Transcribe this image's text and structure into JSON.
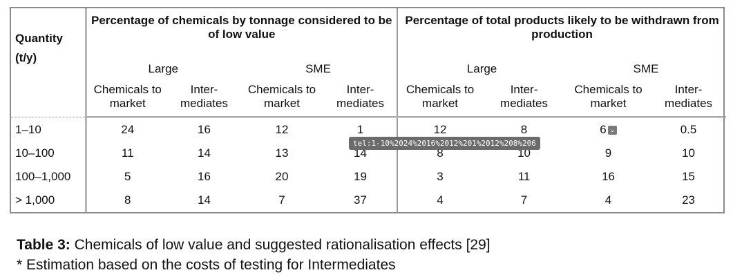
{
  "table": {
    "quantity_header_line1": "Quantity",
    "quantity_header_line2": "(t/y)",
    "group1_title": "Percentage of chemicals by tonnage considered to be of low value",
    "group2_title": "Percentage of total products likely to be withdrawn from production",
    "size_labels": [
      "Large",
      "SME",
      "Large",
      "SME"
    ],
    "sub_headers": [
      [
        "Chemicals to",
        "market"
      ],
      [
        "Inter-",
        "mediates"
      ],
      [
        "Chemicals to",
        "market"
      ],
      [
        "Inter-",
        "mediates"
      ],
      [
        "Chemicals to",
        "market"
      ],
      [
        "Inter-",
        "mediates"
      ],
      [
        "Chemicals to",
        "market"
      ],
      [
        "Inter-",
        "mediates"
      ]
    ],
    "rows": [
      {
        "quantity": "1–10",
        "values": [
          "24",
          "16",
          "12",
          "1",
          "12",
          "8",
          "6",
          "0.5"
        ]
      },
      {
        "quantity": "10–100",
        "values": [
          "11",
          "14",
          "13",
          "14",
          "8",
          "10",
          "9",
          "10"
        ]
      },
      {
        "quantity": "100–1,000",
        "values": [
          "5",
          "16",
          "20",
          "19",
          "3",
          "11",
          "16",
          "15"
        ]
      },
      {
        "quantity": "> 1,000",
        "values": [
          "8",
          "14",
          "7",
          "37",
          "4",
          "7",
          "4",
          "23"
        ]
      }
    ]
  },
  "tooltip": "tel:1-10%2024%2016%2012%201%2012%208%206",
  "caption": {
    "label": "Table 3:",
    "text": " Chemicals of low value and suggested rationalisation effects [29]",
    "note": "* Estimation based on the costs of testing for Intermediates"
  }
}
